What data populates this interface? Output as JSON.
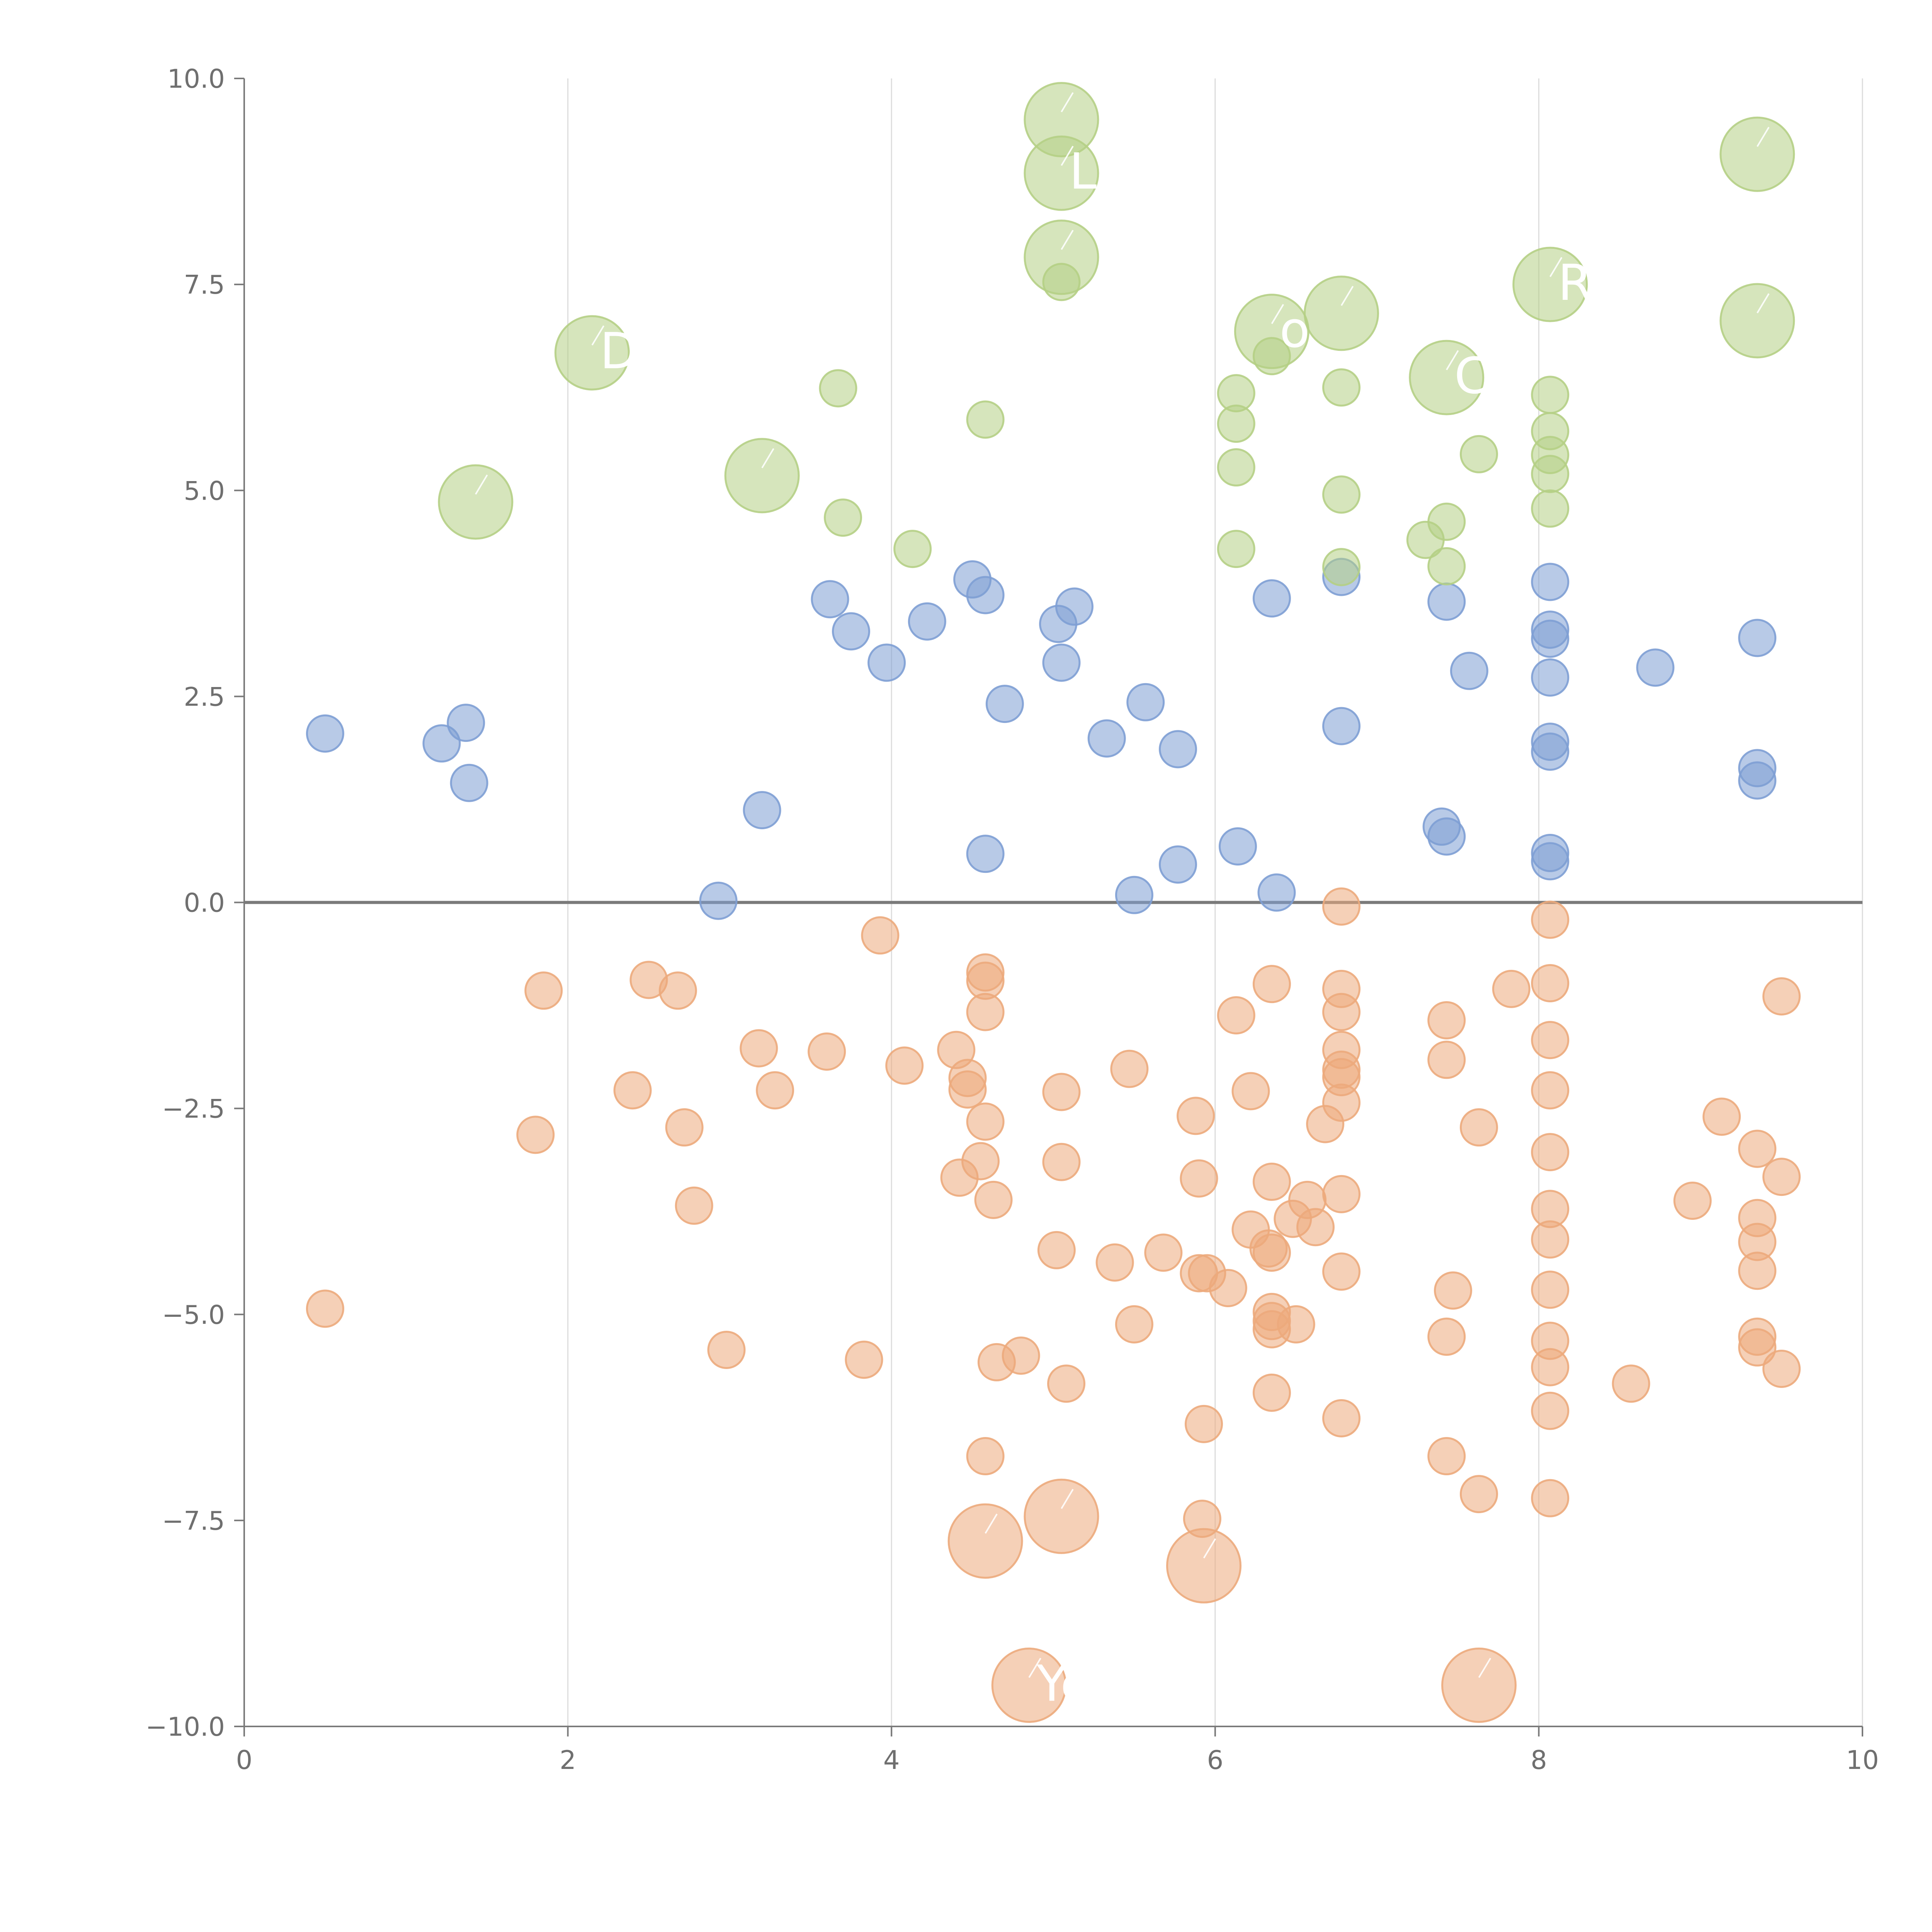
{
  "chart_data": {
    "type": "scatter",
    "title": "",
    "xlabel": "",
    "ylabel": "",
    "xlim": [
      0,
      10
    ],
    "ylim": [
      -10,
      10
    ],
    "x_ticks": [
      0,
      2,
      4,
      6,
      8,
      10
    ],
    "x_tick_labels": [
      "0",
      "2",
      "4",
      "6",
      "8",
      "10"
    ],
    "y_ticks": [
      10,
      7.5,
      5,
      2.5,
      0,
      -2.5,
      -5,
      -7.5,
      -10
    ],
    "y_tick_labels": [
      "10.0",
      "7.5",
      "5.0",
      "2.5",
      "0.0",
      "−2.5",
      "−5.0",
      "−7.5",
      "−10.0"
    ],
    "vertical_grid": true,
    "horizontal_grid": false,
    "reference_line_y": 0,
    "legend": "none",
    "series": [
      {
        "color": "#7e9fd4",
        "points": [
          [
            0.5,
            2.05
          ],
          [
            1.22,
            1.93
          ],
          [
            1.37,
            2.18
          ],
          [
            1.39,
            1.45
          ],
          [
            2.93,
            0.02
          ],
          [
            3.2,
            1.12
          ],
          [
            3.62,
            3.68
          ],
          [
            3.75,
            3.29
          ],
          [
            3.97,
            2.91
          ],
          [
            4.22,
            3.41
          ],
          [
            4.5,
            3.92
          ],
          [
            4.58,
            3.73
          ],
          [
            4.58,
            0.59
          ],
          [
            4.7,
            2.41
          ],
          [
            5.03,
            3.38
          ],
          [
            5.05,
            2.91
          ],
          [
            5.13,
            3.59
          ],
          [
            5.33,
            1.99
          ],
          [
            5.5,
            0.09
          ],
          [
            5.57,
            2.43
          ],
          [
            5.77,
            1.86
          ],
          [
            5.77,
            0.46
          ],
          [
            6.14,
            0.68
          ],
          [
            6.35,
            3.69
          ],
          [
            6.38,
            0.12
          ],
          [
            6.78,
            3.95
          ],
          [
            6.78,
            2.14
          ],
          [
            7.4,
            0.92
          ],
          [
            7.43,
            0.8
          ],
          [
            7.43,
            3.65
          ],
          [
            7.57,
            2.81
          ],
          [
            8.07,
            3.89
          ],
          [
            8.07,
            3.31
          ],
          [
            8.07,
            3.2
          ],
          [
            8.07,
            2.73
          ],
          [
            8.07,
            1.95
          ],
          [
            8.07,
            1.83
          ],
          [
            8.07,
            0.6
          ],
          [
            8.07,
            0.5
          ],
          [
            8.72,
            2.85
          ],
          [
            9.35,
            3.21
          ],
          [
            9.35,
            1.63
          ],
          [
            9.35,
            1.48
          ]
        ]
      },
      {
        "color": "#b5cf85",
        "points": [
          [
            3.67,
            6.24
          ],
          [
            3.7,
            4.67
          ],
          [
            4.13,
            4.29
          ],
          [
            4.58,
            5.86
          ],
          [
            5.05,
            7.53
          ],
          [
            6.13,
            6.18
          ],
          [
            6.13,
            5.81
          ],
          [
            6.13,
            5.28
          ],
          [
            6.13,
            4.29
          ],
          [
            6.35,
            6.63
          ],
          [
            6.78,
            6.25
          ],
          [
            6.78,
            4.95
          ],
          [
            6.78,
            4.07
          ],
          [
            7.3,
            4.4
          ],
          [
            7.43,
            4.62
          ],
          [
            7.43,
            4.08
          ],
          [
            7.63,
            5.44
          ],
          [
            8.07,
            6.16
          ],
          [
            8.07,
            5.72
          ],
          [
            8.07,
            5.43
          ],
          [
            8.07,
            5.2
          ],
          [
            8.07,
            4.78
          ]
        ]
      },
      {
        "color": "#ecaa7c",
        "points": [
          [
            0.5,
            -4.93
          ],
          [
            1.8,
            -2.82
          ],
          [
            1.85,
            -1.07
          ],
          [
            2.4,
            -2.28
          ],
          [
            2.5,
            -0.94
          ],
          [
            2.68,
            -1.07
          ],
          [
            2.72,
            -2.73
          ],
          [
            2.78,
            -3.68
          ],
          [
            2.98,
            -5.43
          ],
          [
            3.18,
            -1.77
          ],
          [
            3.28,
            -2.28
          ],
          [
            3.6,
            -1.81
          ],
          [
            3.83,
            -5.55
          ],
          [
            3.93,
            -0.4
          ],
          [
            4.08,
            -1.98
          ],
          [
            4.4,
            -1.79
          ],
          [
            4.42,
            -3.34
          ],
          [
            4.47,
            -2.13
          ],
          [
            4.47,
            -2.27
          ],
          [
            4.55,
            -3.14
          ],
          [
            4.58,
            -0.85
          ],
          [
            4.58,
            -0.95
          ],
          [
            4.58,
            -1.33
          ],
          [
            4.58,
            -2.66
          ],
          [
            4.58,
            -6.72
          ],
          [
            4.63,
            -3.61
          ],
          [
            4.65,
            -5.58
          ],
          [
            4.8,
            -5.5
          ],
          [
            5.02,
            -4.22
          ],
          [
            5.05,
            -2.3
          ],
          [
            5.05,
            -3.15
          ],
          [
            5.08,
            -5.84
          ],
          [
            5.38,
            -4.37
          ],
          [
            5.47,
            -2.02
          ],
          [
            5.5,
            -5.12
          ],
          [
            5.68,
            -4.25
          ],
          [
            5.88,
            -2.59
          ],
          [
            5.9,
            -3.35
          ],
          [
            5.9,
            -4.5
          ],
          [
            5.92,
            -7.48
          ],
          [
            5.93,
            -6.33
          ],
          [
            5.95,
            -4.5
          ],
          [
            6.08,
            -4.68
          ],
          [
            6.13,
            -1.37
          ],
          [
            6.22,
            -3.97
          ],
          [
            6.22,
            -2.29
          ],
          [
            6.33,
            -4.2
          ],
          [
            6.35,
            -0.99
          ],
          [
            6.35,
            -3.39
          ],
          [
            6.35,
            -4.25
          ],
          [
            6.35,
            -4.97
          ],
          [
            6.35,
            -5.08
          ],
          [
            6.35,
            -5.18
          ],
          [
            6.35,
            -5.95
          ],
          [
            6.48,
            -3.84
          ],
          [
            6.5,
            -5.12
          ],
          [
            6.57,
            -3.61
          ],
          [
            6.62,
            -3.94
          ],
          [
            6.68,
            -2.69
          ],
          [
            6.78,
            -0.05
          ],
          [
            6.78,
            -1.05
          ],
          [
            6.78,
            -1.33
          ],
          [
            6.78,
            -1.79
          ],
          [
            6.78,
            -2.03
          ],
          [
            6.78,
            -2.12
          ],
          [
            6.78,
            -2.43
          ],
          [
            6.78,
            -3.54
          ],
          [
            6.78,
            -4.48
          ],
          [
            6.78,
            -6.26
          ],
          [
            7.43,
            -1.43
          ],
          [
            7.43,
            -1.91
          ],
          [
            7.43,
            -5.27
          ],
          [
            7.43,
            -6.72
          ],
          [
            7.47,
            -4.71
          ],
          [
            7.63,
            -2.73
          ],
          [
            7.63,
            -7.18
          ],
          [
            7.83,
            -1.05
          ],
          [
            8.07,
            -0.21
          ],
          [
            8.07,
            -0.98
          ],
          [
            8.07,
            -1.67
          ],
          [
            8.07,
            -2.28
          ],
          [
            8.07,
            -3.03
          ],
          [
            8.07,
            -3.72
          ],
          [
            8.07,
            -4.09
          ],
          [
            8.07,
            -4.7
          ],
          [
            8.07,
            -5.32
          ],
          [
            8.07,
            -5.64
          ],
          [
            8.07,
            -6.17
          ],
          [
            8.07,
            -7.23
          ],
          [
            8.57,
            -5.84
          ],
          [
            8.95,
            -3.62
          ],
          [
            9.13,
            -2.6
          ],
          [
            9.35,
            -2.99
          ],
          [
            9.35,
            -3.83
          ],
          [
            9.35,
            -4.12
          ],
          [
            9.35,
            -4.47
          ],
          [
            9.35,
            -5.27
          ],
          [
            9.35,
            -5.4
          ],
          [
            9.5,
            -1.14
          ],
          [
            9.5,
            -3.33
          ],
          [
            9.5,
            -5.66
          ]
        ]
      }
    ],
    "highlighted": [
      {
        "label": "D",
        "x": 2.15,
        "y": 6.67,
        "color": "#b5cf85"
      },
      {
        "label": "",
        "x": 1.43,
        "y": 4.86,
        "color": "#b5cf85"
      },
      {
        "label": "",
        "x": 3.2,
        "y": 5.18,
        "color": "#b5cf85"
      },
      {
        "label": "",
        "x": 5.05,
        "y": 9.5,
        "color": "#b5cf85"
      },
      {
        "label": "L",
        "x": 5.05,
        "y": 8.85,
        "color": "#b5cf85"
      },
      {
        "label": "",
        "x": 5.05,
        "y": 7.83,
        "color": "#b5cf85"
      },
      {
        "label": "ox",
        "x": 6.35,
        "y": 6.93,
        "color": "#b5cf85"
      },
      {
        "label": "",
        "x": 6.78,
        "y": 7.15,
        "color": "#b5cf85"
      },
      {
        "label": "Co",
        "x": 7.43,
        "y": 6.37,
        "color": "#b5cf85"
      },
      {
        "label": "R",
        "x": 8.07,
        "y": 7.5,
        "color": "#b5cf85"
      },
      {
        "label": "",
        "x": 9.35,
        "y": 9.08,
        "color": "#b5cf85"
      },
      {
        "label": "",
        "x": 9.35,
        "y": 7.06,
        "color": "#b5cf85"
      },
      {
        "label": "",
        "x": 4.58,
        "y": -7.75,
        "color": "#ecaa7c"
      },
      {
        "label": "",
        "x": 5.05,
        "y": -7.45,
        "color": "#ecaa7c"
      },
      {
        "label": "",
        "x": 5.93,
        "y": -8.05,
        "color": "#ecaa7c"
      },
      {
        "label": "Ye",
        "x": 4.85,
        "y": -9.5,
        "color": "#ecaa7c"
      },
      {
        "label": "",
        "x": 7.63,
        "y": -9.5,
        "color": "#ecaa7c"
      }
    ]
  }
}
